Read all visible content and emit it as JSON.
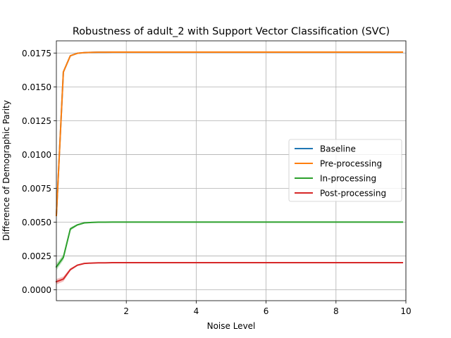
{
  "chart_data": {
    "type": "line",
    "title": "Robustness of adult_2 with Support Vector Classification (SVC)",
    "xlabel": "Noise Level",
    "ylabel": "Difference of Demographic Parity",
    "xlim": [
      0.0,
      10.0
    ],
    "ylim": [
      -0.0008,
      0.0184
    ],
    "xticks": [
      2,
      4,
      6,
      8,
      10
    ],
    "xtick_labels": [
      "2",
      "4",
      "6",
      "8",
      "10"
    ],
    "yticks": [
      0.0,
      0.0025,
      0.005,
      0.0075,
      0.01,
      0.0125,
      0.015,
      0.0175
    ],
    "ytick_labels": [
      "0.0000",
      "0.0025",
      "0.0050",
      "0.0075",
      "0.0100",
      "0.0125",
      "0.0150",
      "0.0175"
    ],
    "grid": true,
    "legend_position": "center-right",
    "x": [
      0.0,
      0.2,
      0.4,
      0.6,
      0.8,
      1.0,
      1.2,
      1.4,
      1.6,
      1.8,
      2.0,
      3.0,
      4.0,
      5.0,
      6.0,
      7.0,
      8.0,
      9.0,
      9.9
    ],
    "series": [
      {
        "name": "Baseline",
        "color": "#1f77b4",
        "values": [
          0.0055,
          0.0161,
          0.0173,
          0.01748,
          0.01753,
          0.01755,
          0.01756,
          0.01756,
          0.01757,
          0.01757,
          0.01757,
          0.01757,
          0.01757,
          0.01757,
          0.01757,
          0.01757,
          0.01757,
          0.01757,
          0.01757
        ],
        "band": [
          0.0001,
          0.0001,
          5e-05,
          3e-05,
          2e-05,
          1e-05,
          1e-05,
          1e-05,
          1e-05,
          1e-05,
          1e-05,
          1e-05,
          1e-05,
          1e-05,
          1e-05,
          1e-05,
          1e-05,
          1e-05,
          1e-05
        ]
      },
      {
        "name": "Pre-processing",
        "color": "#ff7f0e",
        "values": [
          0.0055,
          0.0161,
          0.0173,
          0.01748,
          0.01753,
          0.01755,
          0.01756,
          0.01756,
          0.01757,
          0.01757,
          0.01757,
          0.01757,
          0.01757,
          0.01757,
          0.01757,
          0.01757,
          0.01757,
          0.01757,
          0.01757
        ],
        "band": [
          0.0001,
          0.0001,
          5e-05,
          3e-05,
          2e-05,
          1e-05,
          1e-05,
          1e-05,
          1e-05,
          1e-05,
          1e-05,
          1e-05,
          1e-05,
          1e-05,
          1e-05,
          1e-05,
          1e-05,
          1e-05,
          1e-05
        ]
      },
      {
        "name": "In-processing",
        "color": "#2ca02c",
        "values": [
          0.0017,
          0.0024,
          0.0045,
          0.0048,
          0.00495,
          0.00498,
          0.005,
          0.005,
          0.00501,
          0.00501,
          0.00501,
          0.00501,
          0.00501,
          0.00501,
          0.00501,
          0.00501,
          0.00501,
          0.00501,
          0.00501
        ],
        "band": [
          0.00025,
          0.0002,
          0.00012,
          6e-05,
          3e-05,
          2e-05,
          1e-05,
          1e-05,
          1e-05,
          1e-05,
          1e-05,
          1e-05,
          1e-05,
          1e-05,
          1e-05,
          1e-05,
          1e-05,
          1e-05,
          1e-05
        ]
      },
      {
        "name": "Post-processing",
        "color": "#d62728",
        "values": [
          0.0006,
          0.0008,
          0.0015,
          0.00182,
          0.00195,
          0.00198,
          0.002,
          0.002,
          0.00201,
          0.00201,
          0.00201,
          0.00201,
          0.00201,
          0.00201,
          0.00201,
          0.00201,
          0.00201,
          0.00201,
          0.00201
        ],
        "band": [
          0.0002,
          0.00018,
          0.0001,
          5e-05,
          3e-05,
          2e-05,
          1e-05,
          1e-05,
          1e-05,
          1e-05,
          1e-05,
          1e-05,
          1e-05,
          1e-05,
          1e-05,
          1e-05,
          1e-05,
          1e-05,
          1e-05
        ]
      }
    ]
  }
}
